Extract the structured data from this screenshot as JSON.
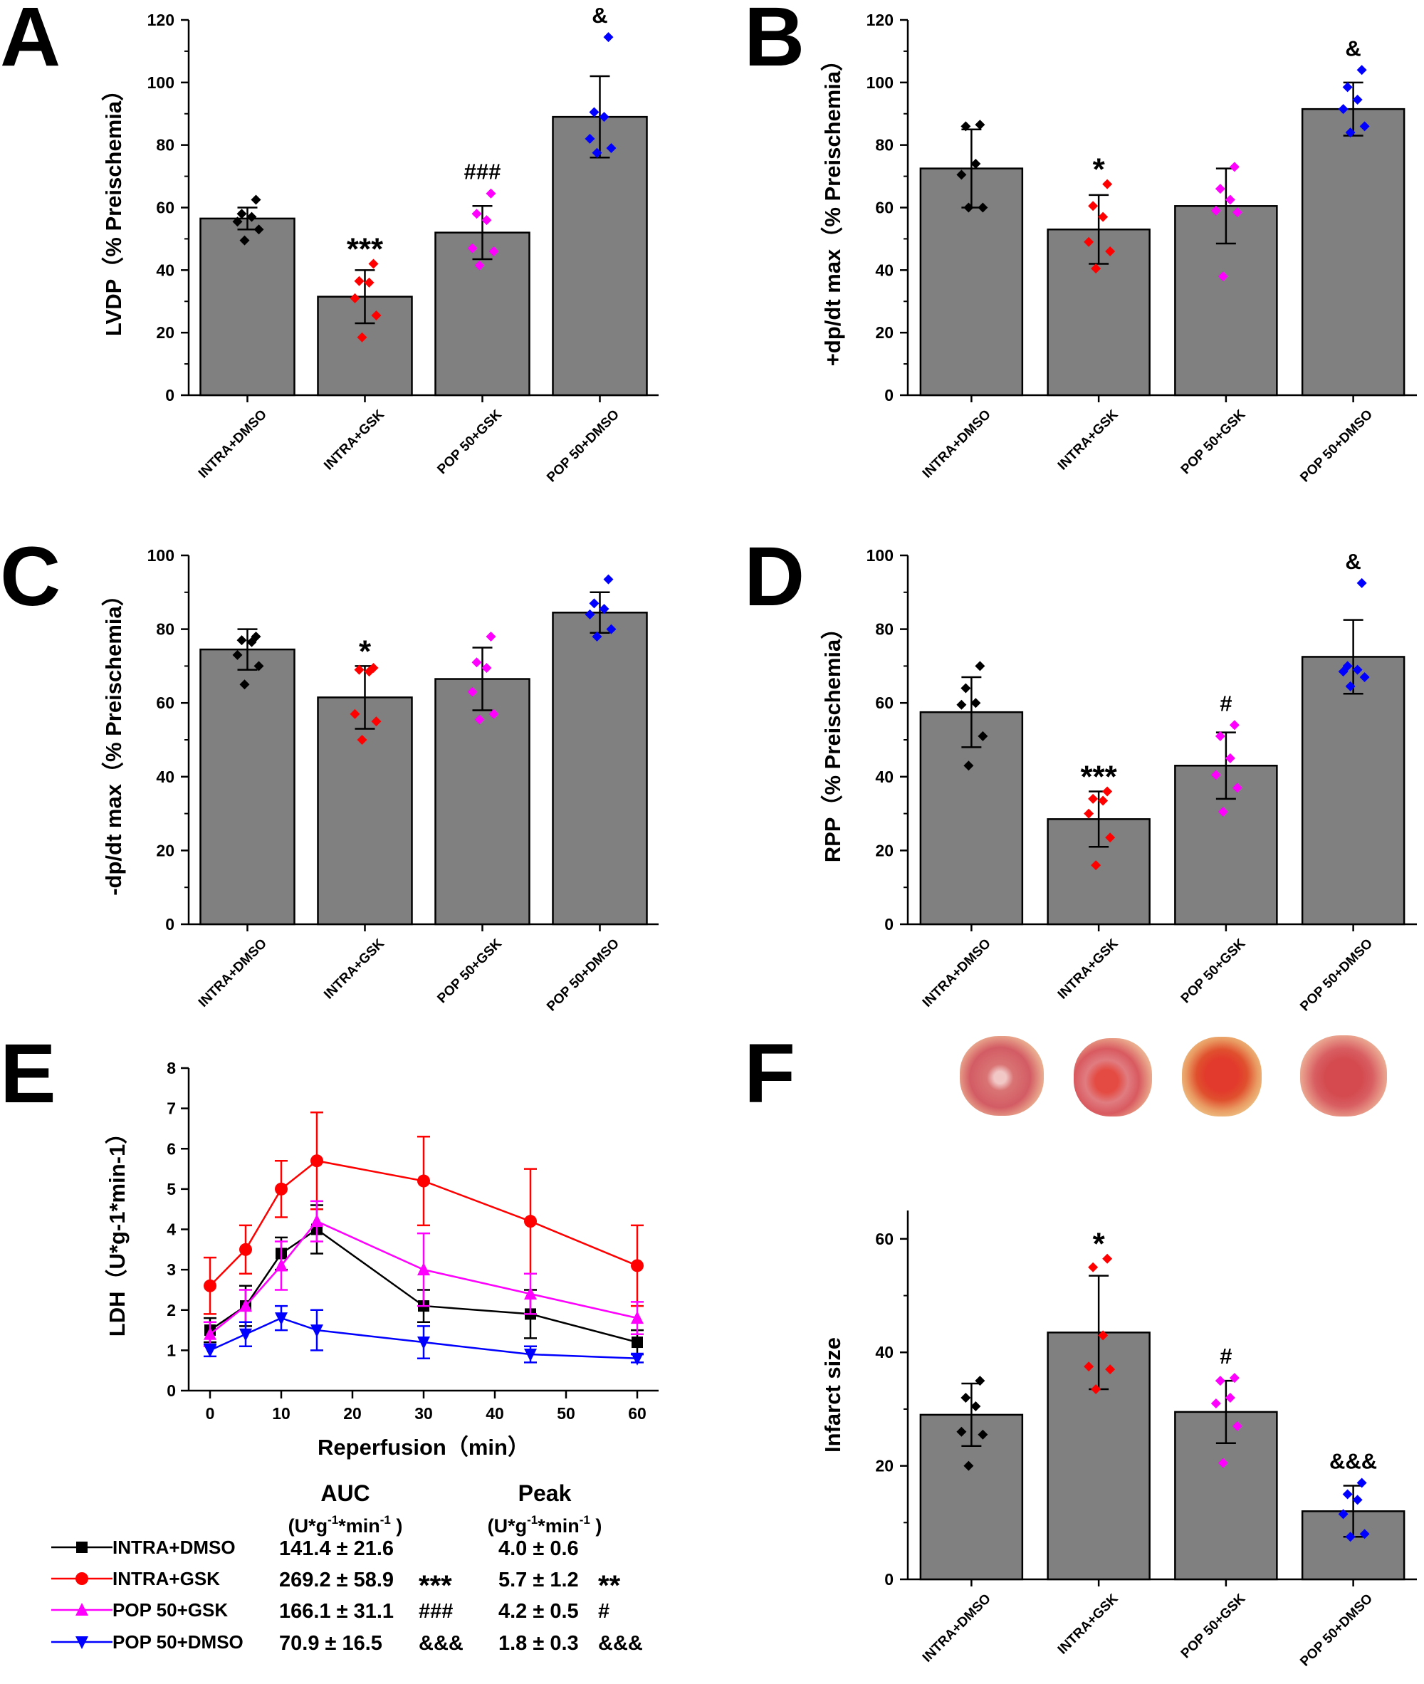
{
  "colors": {
    "bar": "#808080",
    "INTRA+DMSO": "#000000",
    "INTRA+GSK": "#ff0000",
    "POP 50+GSK": "#ff00ff",
    "POP 50+DMSO": "#0000ff"
  },
  "groups": [
    "INTRA+DMSO",
    "INTRA+GSK",
    "POP 50+GSK",
    "POP 50+DMSO"
  ],
  "chart_data": [
    {
      "panel": "A",
      "type": "bar",
      "title": "",
      "ylabel": "LVDP（% Preischemia）",
      "xlabel": "",
      "ylim": [
        0,
        120
      ],
      "yticks": [
        0,
        20,
        40,
        60,
        80,
        100,
        120
      ],
      "categories": [
        "INTRA+DMSO",
        "INTRA+GSK",
        "POP 50+GSK",
        "POP 50+DMSO"
      ],
      "values": [
        56.5,
        31.5,
        52,
        89
      ],
      "errors": [
        3.5,
        8.5,
        8.5,
        13
      ],
      "points": [
        [
          62.5,
          58,
          57,
          55.5,
          53,
          49.5
        ],
        [
          42,
          36.5,
          36,
          31,
          25.5,
          18.5
        ],
        [
          64.5,
          58,
          56,
          47,
          46,
          41.5
        ],
        [
          114.5,
          90.5,
          89,
          82,
          79,
          77.5
        ]
      ],
      "annotations": [
        "",
        "***",
        "###",
        "&"
      ]
    },
    {
      "panel": "B",
      "type": "bar",
      "title": "",
      "ylabel": "+dp/dt max（% Preischemia）",
      "xlabel": "",
      "ylim": [
        0,
        120
      ],
      "yticks": [
        0,
        20,
        40,
        60,
        80,
        100,
        120
      ],
      "categories": [
        "INTRA+DMSO",
        "INTRA+GSK",
        "POP 50+GSK",
        "POP 50+DMSO"
      ],
      "values": [
        72.5,
        53,
        60.5,
        91.5
      ],
      "errors": [
        12.5,
        11,
        12,
        8.5
      ],
      "points": [
        [
          86.5,
          86,
          74,
          70.5,
          60,
          60
        ],
        [
          67.5,
          60.5,
          57,
          49,
          46,
          40.5
        ],
        [
          73,
          66,
          62.5,
          59,
          58.5,
          38
        ],
        [
          104,
          98.5,
          94.5,
          91.5,
          86,
          84
        ]
      ],
      "annotations": [
        "",
        "*",
        "",
        "&"
      ]
    },
    {
      "panel": "C",
      "type": "bar",
      "title": "",
      "ylabel": "-dp/dt max（% Preischemia）",
      "xlabel": "",
      "ylim": [
        0,
        100
      ],
      "yticks": [
        0,
        20,
        40,
        60,
        80,
        100
      ],
      "categories": [
        "INTRA+DMSO",
        "INTRA+GSK",
        "POP 50+GSK",
        "POP 50+DMSO"
      ],
      "values": [
        74.5,
        61.5,
        66.5,
        84.5
      ],
      "errors": [
        5.5,
        8.5,
        8.5,
        5.5
      ],
      "points": [
        [
          78,
          77,
          76.5,
          73,
          70,
          65
        ],
        [
          69.5,
          69,
          68.5,
          57,
          55,
          50
        ],
        [
          78,
          71,
          69.5,
          63,
          57,
          55.5
        ],
        [
          93.5,
          87,
          85.5,
          84,
          80,
          78
        ]
      ],
      "annotations": [
        "",
        "*",
        "",
        ""
      ]
    },
    {
      "panel": "D",
      "type": "bar",
      "title": "",
      "ylabel": "RPP（% Preischemia）",
      "xlabel": "",
      "ylim": [
        0,
        100
      ],
      "yticks": [
        0,
        20,
        40,
        60,
        80,
        100
      ],
      "categories": [
        "INTRA+DMSO",
        "INTRA+GSK",
        "POP 50+GSK",
        "POP 50+DMSO"
      ],
      "values": [
        57.5,
        28.5,
        43,
        72.5
      ],
      "errors": [
        9.5,
        7.5,
        9,
        10
      ],
      "points": [
        [
          70,
          64,
          60,
          59.5,
          51,
          43
        ],
        [
          36,
          34,
          33.5,
          30,
          23.5,
          16
        ],
        [
          54,
          51,
          45,
          40.5,
          37,
          30.5
        ],
        [
          92.5,
          70,
          69,
          68.5,
          67,
          64.5
        ]
      ],
      "annotations": [
        "",
        "***",
        "#",
        "&"
      ]
    },
    {
      "panel": "E",
      "type": "line",
      "title": "",
      "ylabel": "LDH（U*g-1*min-1）",
      "xlabel": "Reperfusion（min）",
      "xlim": [
        -3,
        63
      ],
      "xticks": [
        0,
        10,
        20,
        30,
        40,
        50,
        60
      ],
      "ylim": [
        0,
        8
      ],
      "yticks": [
        0,
        1,
        2,
        3,
        4,
        5,
        6,
        7,
        8
      ],
      "x": [
        0,
        5,
        10,
        15,
        30,
        45,
        60
      ],
      "series": [
        {
          "name": "INTRA+DMSO",
          "marker": "square",
          "values": [
            1.5,
            2.1,
            3.4,
            4.0,
            2.1,
            1.9,
            1.2
          ],
          "errors": [
            0.3,
            0.5,
            0.4,
            0.6,
            0.4,
            0.6,
            0.3
          ]
        },
        {
          "name": "INTRA+GSK",
          "marker": "circle",
          "values": [
            2.6,
            3.5,
            5.0,
            5.7,
            5.2,
            4.2,
            3.1
          ],
          "errors": [
            0.7,
            0.6,
            0.7,
            1.2,
            1.1,
            1.3,
            1.0
          ]
        },
        {
          "name": "POP 50+GSK",
          "marker": "triangle-up",
          "values": [
            1.4,
            2.1,
            3.1,
            4.2,
            3.0,
            2.4,
            1.8
          ],
          "errors": [
            0.3,
            0.4,
            0.6,
            0.5,
            0.9,
            0.5,
            0.4
          ]
        },
        {
          "name": "POP 50+DMSO",
          "marker": "triangle-down",
          "values": [
            1.0,
            1.4,
            1.8,
            1.5,
            1.2,
            0.9,
            0.8
          ],
          "errors": [
            0.15,
            0.3,
            0.3,
            0.5,
            0.4,
            0.2,
            0.1
          ]
        }
      ]
    },
    {
      "panel": "F",
      "type": "bar",
      "title": "",
      "ylabel": "Infarct size",
      "xlabel": "",
      "ylim": [
        0,
        65
      ],
      "yticks": [
        0,
        20,
        40,
        60
      ],
      "categories": [
        "INTRA+DMSO",
        "INTRA+GSK",
        "POP 50+GSK",
        "POP 50+DMSO"
      ],
      "values": [
        29,
        43.5,
        29.5,
        12
      ],
      "errors": [
        5.5,
        10,
        5.5,
        4.5
      ],
      "points": [
        [
          35,
          32,
          30.5,
          26,
          25.5,
          20
        ],
        [
          56.5,
          55,
          43,
          37.5,
          37,
          33.5
        ],
        [
          35.5,
          35,
          32,
          31,
          27,
          20.5
        ],
        [
          17,
          15,
          14,
          11.5,
          8,
          7.5
        ]
      ],
      "annotations": [
        "",
        "*",
        "#",
        "&&&"
      ]
    }
  ],
  "panel_letters": [
    "A",
    "B",
    "C",
    "D",
    "E",
    "F"
  ],
  "ldh_table": {
    "auc_header": "AUC",
    "peak_header": "Peak",
    "unit": "(U*g-1*min-1 )",
    "rows": [
      {
        "group": "INTRA+DMSO",
        "auc": "141.4 ± 21.6",
        "auc_sig": "",
        "peak": "4.0 ± 0.6",
        "peak_sig": ""
      },
      {
        "group": "INTRA+GSK",
        "auc": "269.2 ± 58.9",
        "auc_sig": "***",
        "peak": "5.7 ± 1.2",
        "peak_sig": "**"
      },
      {
        "group": "POP 50+GSK",
        "auc": "166.1 ± 31.1",
        "auc_sig": "###",
        "peak": "4.2 ± 0.5",
        "peak_sig": "#"
      },
      {
        "group": "POP 50+DMSO",
        "auc": "70.9 ± 16.5",
        "auc_sig": "&&&",
        "peak": "1.8 ± 0.3",
        "peak_sig": "&&&"
      }
    ]
  }
}
